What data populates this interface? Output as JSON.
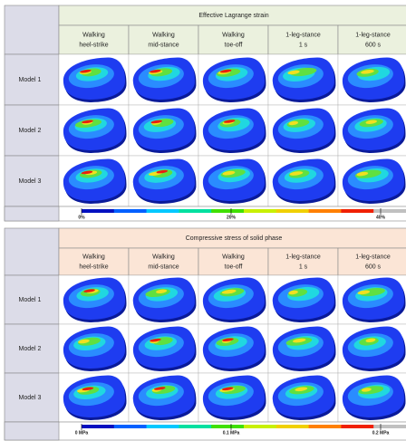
{
  "panels": [
    {
      "title": "Effective Lagrange strain",
      "columns": [
        {
          "lines": [
            "Walking",
            "heel-strike"
          ]
        },
        {
          "lines": [
            "Walking",
            "mid-stance"
          ]
        },
        {
          "lines": [
            "Walking",
            "toe-off"
          ]
        },
        {
          "lines": [
            "1-leg-stance",
            "1 s"
          ]
        },
        {
          "lines": [
            "1-leg-stance",
            "600 s"
          ]
        }
      ],
      "rows": [
        "Model 1",
        "Model 2",
        "Model 3"
      ],
      "colorbar": [
        "0%",
        "20%",
        "40%"
      ]
    },
    {
      "title": "Compressive stress of solid phase",
      "columns": [
        {
          "lines": [
            "Walking",
            "heel-strike"
          ]
        },
        {
          "lines": [
            "Walking",
            "mid-stance"
          ]
        },
        {
          "lines": [
            "Walking",
            "toe-off"
          ]
        },
        {
          "lines": [
            "1-leg-stance",
            "1 s"
          ]
        },
        {
          "lines": [
            "1-leg-stance",
            "600 s"
          ]
        }
      ],
      "rows": [
        "Model 1",
        "Model 2",
        "Model 3"
      ],
      "colorbar": [
        "0 MPa",
        "0.1 MPa",
        "0.2 MPa"
      ]
    }
  ]
}
